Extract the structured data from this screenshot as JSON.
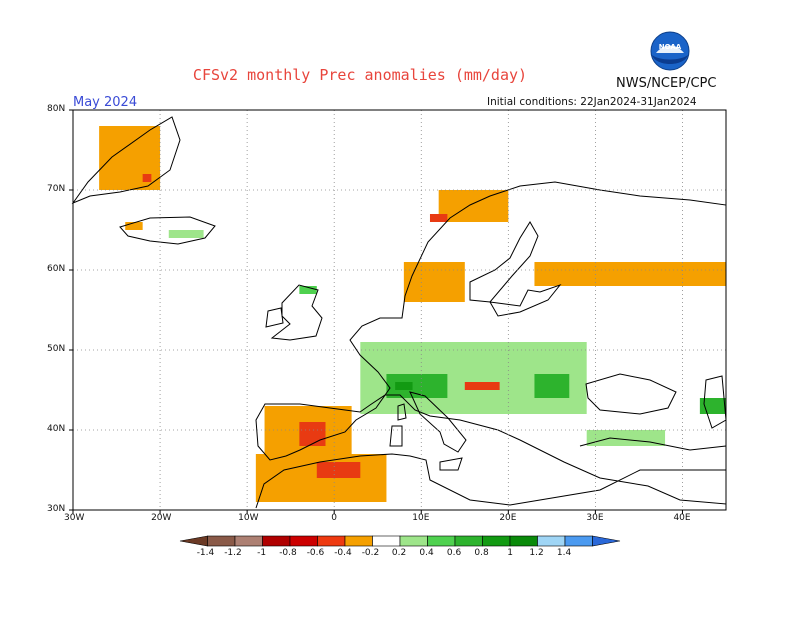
{
  "header": {
    "title": "CFSv2 monthly Prec anomalies (mm/day)",
    "agency": "NWS/NCEP/CPC",
    "logo_text": "NOAA",
    "valid_month": "May 2024",
    "initial_conditions": "Initial conditions: 22Jan2024-31Jan2024"
  },
  "map": {
    "projection": "lat-lon",
    "lon_range": [
      -30,
      45
    ],
    "lat_range": [
      30,
      80
    ],
    "lat_ticks": [
      {
        "value": 30,
        "label": "30N"
      },
      {
        "value": 40,
        "label": "40N"
      },
      {
        "value": 50,
        "label": "50N"
      },
      {
        "value": 60,
        "label": "60N"
      },
      {
        "value": 70,
        "label": "70N"
      },
      {
        "value": 80,
        "label": "80N"
      }
    ],
    "lon_ticks": [
      {
        "value": -30,
        "label": "30W"
      },
      {
        "value": -20,
        "label": "20W"
      },
      {
        "value": -10,
        "label": "10W"
      },
      {
        "value": 0,
        "label": "0"
      },
      {
        "value": 10,
        "label": "10E"
      },
      {
        "value": 20,
        "label": "20E"
      },
      {
        "value": 30,
        "label": "30E"
      },
      {
        "value": 40,
        "label": "40E"
      }
    ],
    "grid": "dotted",
    "anomaly_regions": [
      {
        "name": "Greenland",
        "color": "#f5a000",
        "lon": [
          -27,
          -20
        ],
        "lat": [
          70,
          78
        ]
      },
      {
        "name": "Greenland-east",
        "color": "#e83a12",
        "lon": [
          -22,
          -21
        ],
        "lat": [
          71,
          72
        ]
      },
      {
        "name": "Iceland",
        "color": "#9ee58a",
        "lon": [
          -19,
          -15
        ],
        "lat": [
          64,
          65
        ]
      },
      {
        "name": "Iceland-west",
        "color": "#f5a000",
        "lon": [
          -24,
          -22
        ],
        "lat": [
          65,
          66
        ]
      },
      {
        "name": "Norway-north",
        "color": "#f5a000",
        "lon": [
          12,
          20
        ],
        "lat": [
          66,
          70
        ]
      },
      {
        "name": "Norway-coast",
        "color": "#e83a12",
        "lon": [
          11,
          13
        ],
        "lat": [
          66,
          67
        ]
      },
      {
        "name": "Scandinavia-south",
        "color": "#f5a000",
        "lon": [
          8,
          15
        ],
        "lat": [
          56,
          61
        ]
      },
      {
        "name": "Finland-Russia",
        "color": "#f5a000",
        "lon": [
          23,
          45
        ],
        "lat": [
          58,
          61
        ]
      },
      {
        "name": "Scotland",
        "color": "#4fd14f",
        "lon": [
          -4,
          -2
        ],
        "lat": [
          57,
          58
        ]
      },
      {
        "name": "Central Europe",
        "color": "#9ee58a",
        "lon": [
          3,
          29
        ],
        "lat": [
          42,
          51
        ]
      },
      {
        "name": "Alps",
        "color": "#2db32d",
        "lon": [
          6,
          13
        ],
        "lat": [
          44,
          47
        ]
      },
      {
        "name": "Alps-core",
        "color": "#129a12",
        "lon": [
          7,
          9
        ],
        "lat": [
          45,
          46
        ]
      },
      {
        "name": "Pannonia",
        "color": "#e83a12",
        "lon": [
          15,
          19
        ],
        "lat": [
          45,
          46
        ]
      },
      {
        "name": "Romania",
        "color": "#2db32d",
        "lon": [
          23,
          27
        ],
        "lat": [
          44,
          47
        ]
      },
      {
        "name": "Iberia",
        "color": "#f5a000",
        "lon": [
          -8,
          2
        ],
        "lat": [
          37,
          43
        ]
      },
      {
        "name": "Iberia-center",
        "color": "#e83a12",
        "lon": [
          -4,
          -1
        ],
        "lat": [
          38,
          41
        ]
      },
      {
        "name": "NW Africa",
        "color": "#f5a000",
        "lon": [
          -9,
          6
        ],
        "lat": [
          31,
          37
        ]
      },
      {
        "name": "NW Africa-core",
        "color": "#e83a12",
        "lon": [
          -2,
          3
        ],
        "lat": [
          34,
          36
        ]
      },
      {
        "name": "Turkey",
        "color": "#9ee58a",
        "lon": [
          29,
          38
        ],
        "lat": [
          38,
          40
        ]
      },
      {
        "name": "Caucasus",
        "color": "#2db32d",
        "lon": [
          42,
          45
        ],
        "lat": [
          42,
          44
        ]
      }
    ]
  },
  "legend": {
    "labels": [
      "-1.4",
      "-1.2",
      "-1",
      "-0.8",
      "-0.6",
      "-0.4",
      "-0.2",
      "0.2",
      "0.4",
      "0.6",
      "0.8",
      "1",
      "1.2",
      "1.4"
    ],
    "colors": [
      "#6b3a25",
      "#8a5a48",
      "#ad8073",
      "#b00000",
      "#cc0000",
      "#ee3a10",
      "#f5a000",
      "#ffffff",
      "#9ee58a",
      "#4fd14f",
      "#2db32d",
      "#129a12",
      "#0a8a0a",
      "#9fd5f5",
      "#4b9af0",
      "#2a68d8"
    ]
  }
}
